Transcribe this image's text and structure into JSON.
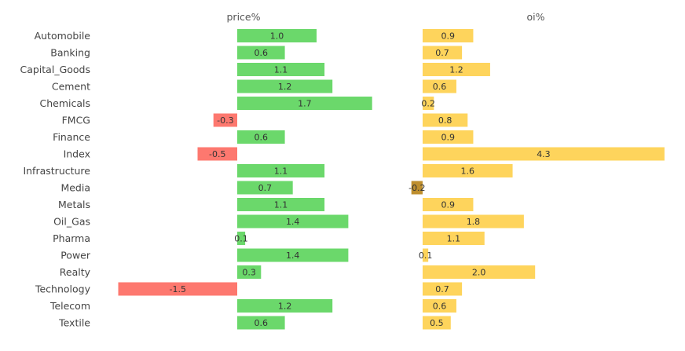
{
  "chart_data": {
    "type": "bar",
    "orientation": "horizontal",
    "categories": [
      "Automobile",
      "Banking",
      "Capital_Goods",
      "Cement",
      "Chemicals",
      "FMCG",
      "Finance",
      "Index",
      "Infrastructure",
      "Media",
      "Metals",
      "Oil_Gas",
      "Pharma",
      "Power",
      "Realty",
      "Technology",
      "Telecom",
      "Textile"
    ],
    "panels": [
      {
        "title": "price%",
        "values": [
          1.0,
          0.6,
          1.1,
          1.2,
          1.7,
          -0.3,
          0.6,
          -0.5,
          1.1,
          0.7,
          1.1,
          1.4,
          0.1,
          1.4,
          0.3,
          -1.5,
          1.2,
          0.6
        ],
        "labels": [
          "1.0",
          "0.6",
          "1.1",
          "1.2",
          "1.7",
          "-0.3",
          "0.6",
          "-0.5",
          "1.1",
          "0.7",
          "1.1",
          "1.4",
          "0.1",
          "1.4",
          "0.3",
          "-1.5",
          "1.2",
          "0.6"
        ],
        "positive_color": "#6bd86b",
        "negative_color": "#fd786f",
        "xlim": [
          -1.5,
          1.7
        ]
      },
      {
        "title": "oi%",
        "values": [
          0.9,
          0.7,
          1.2,
          0.6,
          0.2,
          0.8,
          0.9,
          4.3,
          1.6,
          -0.2,
          0.9,
          1.8,
          1.1,
          0.1,
          2.0,
          0.7,
          0.6,
          0.5
        ],
        "labels": [
          "0.9",
          "0.7",
          "1.2",
          "0.6",
          "0.2",
          "0.8",
          "0.9",
          "4.3",
          "1.6",
          "-0.2",
          "0.9",
          "1.8",
          "1.1",
          "0.1",
          "2.0",
          "0.7",
          "0.6",
          "0.5"
        ],
        "positive_color": "#fed45c",
        "negative_color": "#be8e2d",
        "xlim": [
          -0.3,
          4.3
        ]
      }
    ],
    "grid": false,
    "legend": "none"
  }
}
